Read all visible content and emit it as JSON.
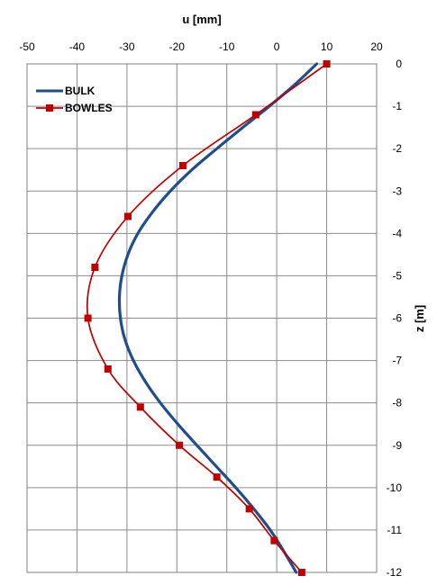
{
  "chart_data": {
    "type": "line",
    "title": "",
    "xlabel": "u [mm]",
    "ylabel": "z [m]",
    "xlim": [
      -50,
      20
    ],
    "ylim": [
      -12,
      0
    ],
    "x_ticks": [
      -50,
      -40,
      -30,
      -20,
      -10,
      0,
      10,
      20
    ],
    "y_ticks": [
      0,
      -1,
      -2,
      -3,
      -4,
      -5,
      -6,
      -7,
      -8,
      -9,
      -10,
      -11,
      -12
    ],
    "x_axis_position": "top",
    "y_axis_position": "right",
    "grid": true,
    "legend_position": "top-left",
    "series": [
      {
        "name": "BULK",
        "color": "#1f4e8c",
        "marker": "none",
        "points": [
          {
            "x": 8.0,
            "y": 0.0
          },
          {
            "x": 3.5,
            "y": -0.5
          },
          {
            "x": -1.5,
            "y": -1.0
          },
          {
            "x": -6.8,
            "y": -1.5
          },
          {
            "x": -12.0,
            "y": -2.0
          },
          {
            "x": -17.0,
            "y": -2.5
          },
          {
            "x": -21.3,
            "y": -3.0
          },
          {
            "x": -24.9,
            "y": -3.5
          },
          {
            "x": -27.8,
            "y": -4.0
          },
          {
            "x": -29.8,
            "y": -4.5
          },
          {
            "x": -31.0,
            "y": -5.0
          },
          {
            "x": -31.5,
            "y": -5.5
          },
          {
            "x": -31.3,
            "y": -6.0
          },
          {
            "x": -30.4,
            "y": -6.5
          },
          {
            "x": -28.7,
            "y": -7.0
          },
          {
            "x": -26.3,
            "y": -7.5
          },
          {
            "x": -23.3,
            "y": -8.0
          },
          {
            "x": -19.8,
            "y": -8.5
          },
          {
            "x": -16.0,
            "y": -9.0
          },
          {
            "x": -12.1,
            "y": -9.5
          },
          {
            "x": -8.2,
            "y": -10.0
          },
          {
            "x": -4.6,
            "y": -10.5
          },
          {
            "x": -1.3,
            "y": -11.0
          },
          {
            "x": 1.4,
            "y": -11.5
          },
          {
            "x": 3.9,
            "y": -12.0
          }
        ]
      },
      {
        "name": "BOWLES",
        "color": "#c00000",
        "marker": "square",
        "points": [
          {
            "x": 10.0,
            "y": 0.0
          },
          {
            "x": -4.2,
            "y": -1.2
          },
          {
            "x": -18.8,
            "y": -2.4
          },
          {
            "x": -29.8,
            "y": -3.6
          },
          {
            "x": -36.4,
            "y": -4.8
          },
          {
            "x": -37.8,
            "y": -6.0
          },
          {
            "x": -33.8,
            "y": -7.2
          },
          {
            "x": -27.3,
            "y": -8.1
          },
          {
            "x": -19.5,
            "y": -9.0
          },
          {
            "x": -12.0,
            "y": -9.75
          },
          {
            "x": -5.5,
            "y": -10.5
          },
          {
            "x": -0.5,
            "y": -11.25
          },
          {
            "x": 5.0,
            "y": -12.0
          }
        ]
      }
    ]
  }
}
